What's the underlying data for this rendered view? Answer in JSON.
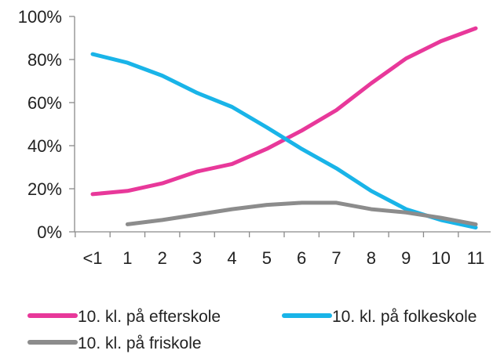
{
  "chart_data": {
    "type": "line",
    "categories": [
      "<1",
      "1",
      "2",
      "3",
      "4",
      "5",
      "6",
      "7",
      "8",
      "9",
      "10",
      "11"
    ],
    "yticks": [
      "0%",
      "20%",
      "40%",
      "60%",
      "80%",
      "100%"
    ],
    "ylim": [
      0,
      100
    ],
    "grid": false,
    "legend_position": "bottom",
    "series": [
      {
        "name": "10. kl. på efterskole",
        "color": "#e8389a",
        "values": [
          17.5,
          19,
          22.5,
          28,
          31.5,
          38.5,
          47,
          56.5,
          69,
          80.5,
          88.5,
          94.5
        ]
      },
      {
        "name": "10. kl. på folkeskole",
        "color": "#19b4e8",
        "values": [
          82.5,
          78.5,
          72.5,
          64.5,
          58,
          48.5,
          38.5,
          29.5,
          19,
          10.5,
          5.5,
          2
        ]
      },
      {
        "name": "10. kl. på friskole",
        "color": "#8c8c8c",
        "values": [
          null,
          3.5,
          5.5,
          8,
          10.5,
          12.5,
          13.5,
          13.5,
          10.5,
          9,
          6.5,
          3.5
        ]
      }
    ]
  }
}
